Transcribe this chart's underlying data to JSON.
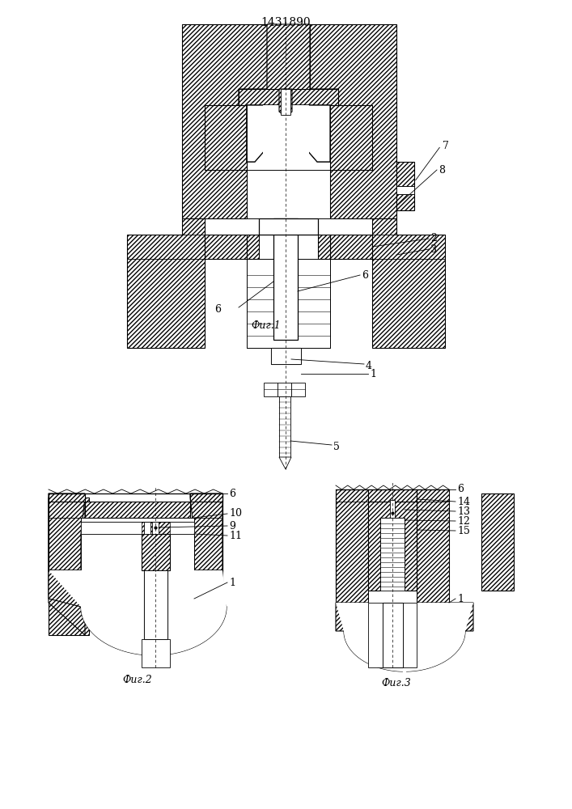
{
  "title": "1431890",
  "bg_color": "#ffffff",
  "line_color": "#000000",
  "fig1_label": "Фиг.1",
  "fig2_label": "Фиг.2",
  "fig3_label": "Фиг.3"
}
